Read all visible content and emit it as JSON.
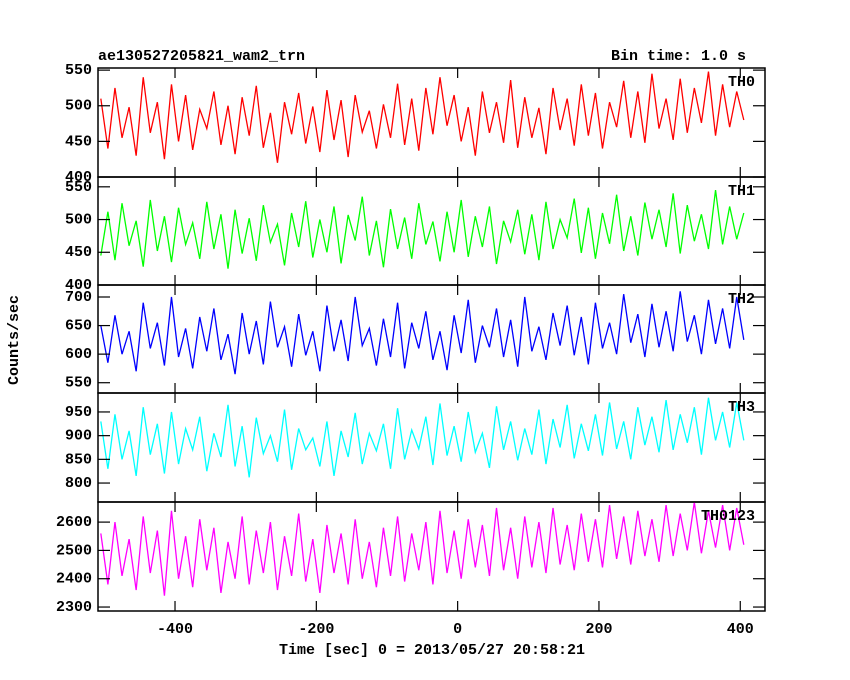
{
  "chart_data": {
    "type": "line",
    "title": "ae130527205821_wam2_trn",
    "subtitle": "Bin time: 1.0 s",
    "xlabel": "Time [sec] 0 = 2013/05/27 20:58:21",
    "ylabel": "Counts/sec",
    "xlim": [
      -509,
      435
    ],
    "xticks": [
      -400,
      -200,
      0,
      200,
      400
    ],
    "x": [
      -505,
      -495,
      -485,
      -475,
      -465,
      -455,
      -445,
      -435,
      -425,
      -415,
      -405,
      -395,
      -385,
      -375,
      -365,
      -355,
      -345,
      -335,
      -325,
      -315,
      -305,
      -295,
      -285,
      -275,
      -265,
      -255,
      -245,
      -235,
      -225,
      -215,
      -205,
      -195,
      -185,
      -175,
      -165,
      -155,
      -145,
      -135,
      -125,
      -115,
      -105,
      -95,
      -85,
      -75,
      -65,
      -55,
      -45,
      -35,
      -25,
      -15,
      -5,
      5,
      15,
      25,
      35,
      45,
      55,
      65,
      75,
      85,
      95,
      105,
      115,
      125,
      135,
      145,
      155,
      165,
      175,
      185,
      195,
      205,
      215,
      225,
      235,
      245,
      255,
      265,
      275,
      285,
      295,
      305,
      315,
      325,
      335,
      345,
      355,
      365,
      375,
      385,
      395,
      405
    ],
    "panels": [
      {
        "name": "TH0",
        "color": "#ff0000",
        "ylim": [
          400,
          553
        ],
        "yticks": [
          400,
          450,
          500,
          550
        ],
        "values": [
          510,
          440,
          525,
          455,
          498,
          430,
          540,
          462,
          505,
          425,
          530,
          450,
          515,
          438,
          495,
          468,
          520,
          445,
          500,
          432,
          512,
          458,
          528,
          441,
          490,
          420,
          505,
          460,
          518,
          447,
          499,
          435,
          522,
          452,
          508,
          428,
          515,
          463,
          493,
          440,
          502,
          455,
          531,
          445,
          510,
          437,
          525,
          460,
          540,
          472,
          515,
          450,
          498,
          430,
          520,
          462,
          505,
          448,
          536,
          441,
          512,
          455,
          497,
          432,
          525,
          466,
          510,
          444,
          530,
          458,
          518,
          440,
          505,
          470,
          535,
          455,
          520,
          448,
          545,
          468,
          510,
          452,
          538,
          462,
          525,
          476,
          548,
          458,
          530,
          470,
          520,
          480
        ]
      },
      {
        "name": "TH1",
        "color": "#00ff00",
        "ylim": [
          400,
          565
        ],
        "yticks": [
          400,
          450,
          500,
          550
        ],
        "values": [
          445,
          512,
          438,
          525,
          460,
          498,
          428,
          530,
          452,
          505,
          435,
          518,
          462,
          495,
          440,
          527,
          455,
          508,
          425,
          515,
          448,
          502,
          437,
          522,
          465,
          493,
          430,
          510,
          458,
          528,
          442,
          500,
          450,
          520,
          433,
          507,
          468,
          535,
          445,
          498,
          427,
          516,
          455,
          503,
          440,
          525,
          462,
          497,
          436,
          512,
          450,
          530,
          443,
          505,
          458,
          520,
          432,
          498,
          466,
          515,
          447,
          508,
          438,
          527,
          455,
          500,
          472,
          532,
          449,
          518,
          440,
          510,
          463,
          538,
          452,
          505,
          445,
          526,
          470,
          515,
          458,
          540,
          448,
          522,
          467,
          508,
          455,
          545,
          462,
          520,
          470,
          510
        ]
      },
      {
        "name": "TH2",
        "color": "#0000ff",
        "ylim": [
          532,
          721
        ],
        "yticks": [
          550,
          600,
          650,
          700
        ],
        "values": [
          650,
          585,
          668,
          600,
          640,
          570,
          690,
          610,
          655,
          580,
          700,
          595,
          645,
          575,
          665,
          605,
          680,
          590,
          635,
          565,
          672,
          600,
          658,
          582,
          692,
          612,
          648,
          578,
          670,
          598,
          640,
          570,
          685,
          605,
          660,
          588,
          700,
          615,
          645,
          580,
          662,
          595,
          690,
          575,
          655,
          610,
          675,
          590,
          640,
          572,
          668,
          602,
          695,
          585,
          650,
          612,
          680,
          595,
          660,
          578,
          700,
          605,
          648,
          590,
          672,
          615,
          685,
          598,
          665,
          582,
          690,
          610,
          655,
          600,
          705,
          620,
          670,
          595,
          688,
          612,
          675,
          605,
          710,
          622,
          668,
          600,
          695,
          618,
          680,
          610,
          700,
          625
        ]
      },
      {
        "name": "TH3",
        "color": "#00ffff",
        "ylim": [
          760,
          990
        ],
        "yticks": [
          800,
          850,
          900,
          950
        ],
        "values": [
          930,
          830,
          945,
          850,
          910,
          815,
          960,
          860,
          925,
          820,
          950,
          840,
          915,
          870,
          940,
          825,
          905,
          855,
          965,
          835,
          920,
          812,
          938,
          862,
          900,
          845,
          955,
          828,
          915,
          870,
          895,
          835,
          930,
          815,
          910,
          855,
          948,
          840,
          905,
          868,
          925,
          830,
          958,
          850,
          912,
          872,
          940,
          838,
          968,
          858,
          920,
          845,
          950,
          865,
          905,
          832,
          962,
          870,
          930,
          848,
          915,
          860,
          955,
          840,
          935,
          875,
          965,
          852,
          925,
          868,
          945,
          858,
          970,
          872,
          930,
          850,
          960,
          880,
          940,
          865,
          975,
          870,
          945,
          885,
          960,
          860,
          980,
          890,
          950,
          875,
          970,
          890
        ]
      },
      {
        "name": "TH0123",
        "color": "#ff00ff",
        "ylim": [
          2286,
          2671
        ],
        "yticks": [
          2300,
          2400,
          2500,
          2600
        ],
        "values": [
          2560,
          2380,
          2600,
          2410,
          2540,
          2360,
          2620,
          2420,
          2570,
          2340,
          2640,
          2400,
          2550,
          2370,
          2610,
          2430,
          2580,
          2350,
          2530,
          2400,
          2620,
          2380,
          2570,
          2420,
          2600,
          2360,
          2550,
          2410,
          2630,
          2390,
          2540,
          2350,
          2590,
          2420,
          2560,
          2380,
          2610,
          2400,
          2530,
          2370,
          2580,
          2410,
          2620,
          2390,
          2560,
          2430,
          2600,
          2380,
          2640,
          2420,
          2570,
          2400,
          2610,
          2440,
          2590,
          2410,
          2650,
          2430,
          2580,
          2400,
          2620,
          2440,
          2600,
          2420,
          2650,
          2450,
          2590,
          2430,
          2630,
          2460,
          2610,
          2440,
          2660,
          2470,
          2620,
          2450,
          2640,
          2480,
          2610,
          2460,
          2660,
          2480,
          2630,
          2500,
          2670,
          2490,
          2640,
          2510,
          2660,
          2500,
          2650,
          2520
        ]
      }
    ]
  }
}
